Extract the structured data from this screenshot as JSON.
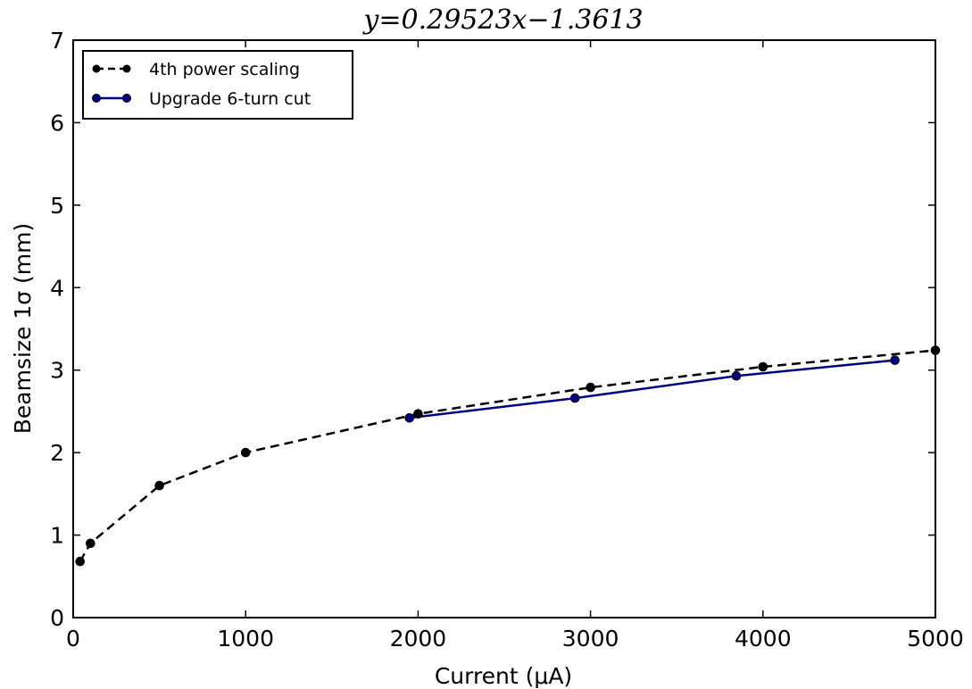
{
  "chart_data": {
    "type": "line",
    "title": "y=0.29523x−1.3613",
    "xlabel": "Current (μA)",
    "ylabel": "Beamsize 1σ (mm)",
    "xlim": [
      0,
      5000
    ],
    "ylim": [
      0,
      7
    ],
    "xticks": [
      0,
      1000,
      2000,
      3000,
      4000,
      5000
    ],
    "yticks": [
      0,
      1,
      2,
      3,
      4,
      5,
      6,
      7
    ],
    "grid": false,
    "legend_position": "top-left",
    "series": [
      {
        "name": "4th power scaling",
        "color": "#000000",
        "linestyle": "dashed",
        "marker": "circle",
        "x": [
          40,
          100,
          500,
          1000,
          2000,
          3000,
          4000,
          5000
        ],
        "y": [
          0.68,
          0.9,
          1.6,
          2.0,
          2.47,
          2.79,
          3.04,
          3.24
        ]
      },
      {
        "name": "Upgrade 6-turn cut",
        "color": "#000080",
        "linestyle": "solid",
        "marker": "circle",
        "x": [
          1950,
          2910,
          3845,
          4765
        ],
        "y": [
          2.42,
          2.66,
          2.93,
          3.12
        ]
      }
    ]
  }
}
